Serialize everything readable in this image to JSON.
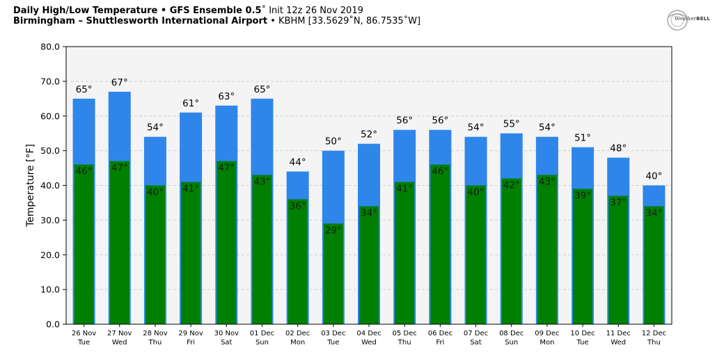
{
  "header": {
    "line1_bold": "Daily High/Low Temperature • GFS Ensemble 0.5",
    "line1_rest": "˚ Init 12z 26 Nov 2019",
    "line2_bold": "Birmingham – Shuttlesworth International Airport",
    "line2_rest": " • KBHM [33.5629˚N, 86.7535˚W]"
  },
  "logo": {
    "text_light": "Weather",
    "text_bold": "BELL"
  },
  "colors": {
    "high": "#2e86ea",
    "low": "#008000",
    "plot_bg": "#f4f4f4"
  },
  "chart_data": {
    "type": "bar",
    "title": "Daily High/Low Temperature • GFS Ensemble 0.5˚ Init 12z 26 Nov 2019",
    "ylabel": "Temperature [°F]",
    "xlabel": "",
    "ylim": [
      0,
      80
    ],
    "yticks": [
      "0.0",
      "10.0",
      "20.0",
      "30.0",
      "40.0",
      "50.0",
      "60.0",
      "70.0",
      "80.0"
    ],
    "grid": true,
    "categories": [
      {
        "date": "26 Nov",
        "day": "Tue"
      },
      {
        "date": "27 Nov",
        "day": "Wed"
      },
      {
        "date": "28 Nov",
        "day": "Thu"
      },
      {
        "date": "29 Nov",
        "day": "Fri"
      },
      {
        "date": "30 Nov",
        "day": "Sat"
      },
      {
        "date": "01 Dec",
        "day": "Sun"
      },
      {
        "date": "02 Dec",
        "day": "Mon"
      },
      {
        "date": "03 Dec",
        "day": "Tue"
      },
      {
        "date": "04 Dec",
        "day": "Wed"
      },
      {
        "date": "05 Dec",
        "day": "Thu"
      },
      {
        "date": "06 Dec",
        "day": "Fri"
      },
      {
        "date": "07 Dec",
        "day": "Sat"
      },
      {
        "date": "08 Dec",
        "day": "Sun"
      },
      {
        "date": "09 Dec",
        "day": "Mon"
      },
      {
        "date": "10 Dec",
        "day": "Tue"
      },
      {
        "date": "11 Dec",
        "day": "Wed"
      },
      {
        "date": "12 Dec",
        "day": "Thu"
      }
    ],
    "series": [
      {
        "values": [
          65,
          67,
          54,
          61,
          63,
          65,
          44,
          50,
          52,
          56,
          56,
          54,
          55,
          54,
          51,
          48,
          40
        ],
        "labels": [
          "65°",
          "67°",
          "54°",
          "61°",
          "63°",
          "65°",
          "44°",
          "50°",
          "52°",
          "56°",
          "56°",
          "54°",
          "55°",
          "54°",
          "51°",
          "48°",
          "40°"
        ]
      },
      {
        "values": [
          46,
          47,
          40,
          41,
          47,
          43,
          36,
          29,
          34,
          41,
          46,
          40,
          42,
          43,
          39,
          37,
          34
        ],
        "labels": [
          "46°",
          "47°",
          "40°",
          "41°",
          "47°",
          "43°",
          "36°",
          "29°",
          "34°",
          "41°",
          "46°",
          "40°",
          "42°",
          "43°",
          "39°",
          "37°",
          "34°"
        ]
      }
    ]
  }
}
